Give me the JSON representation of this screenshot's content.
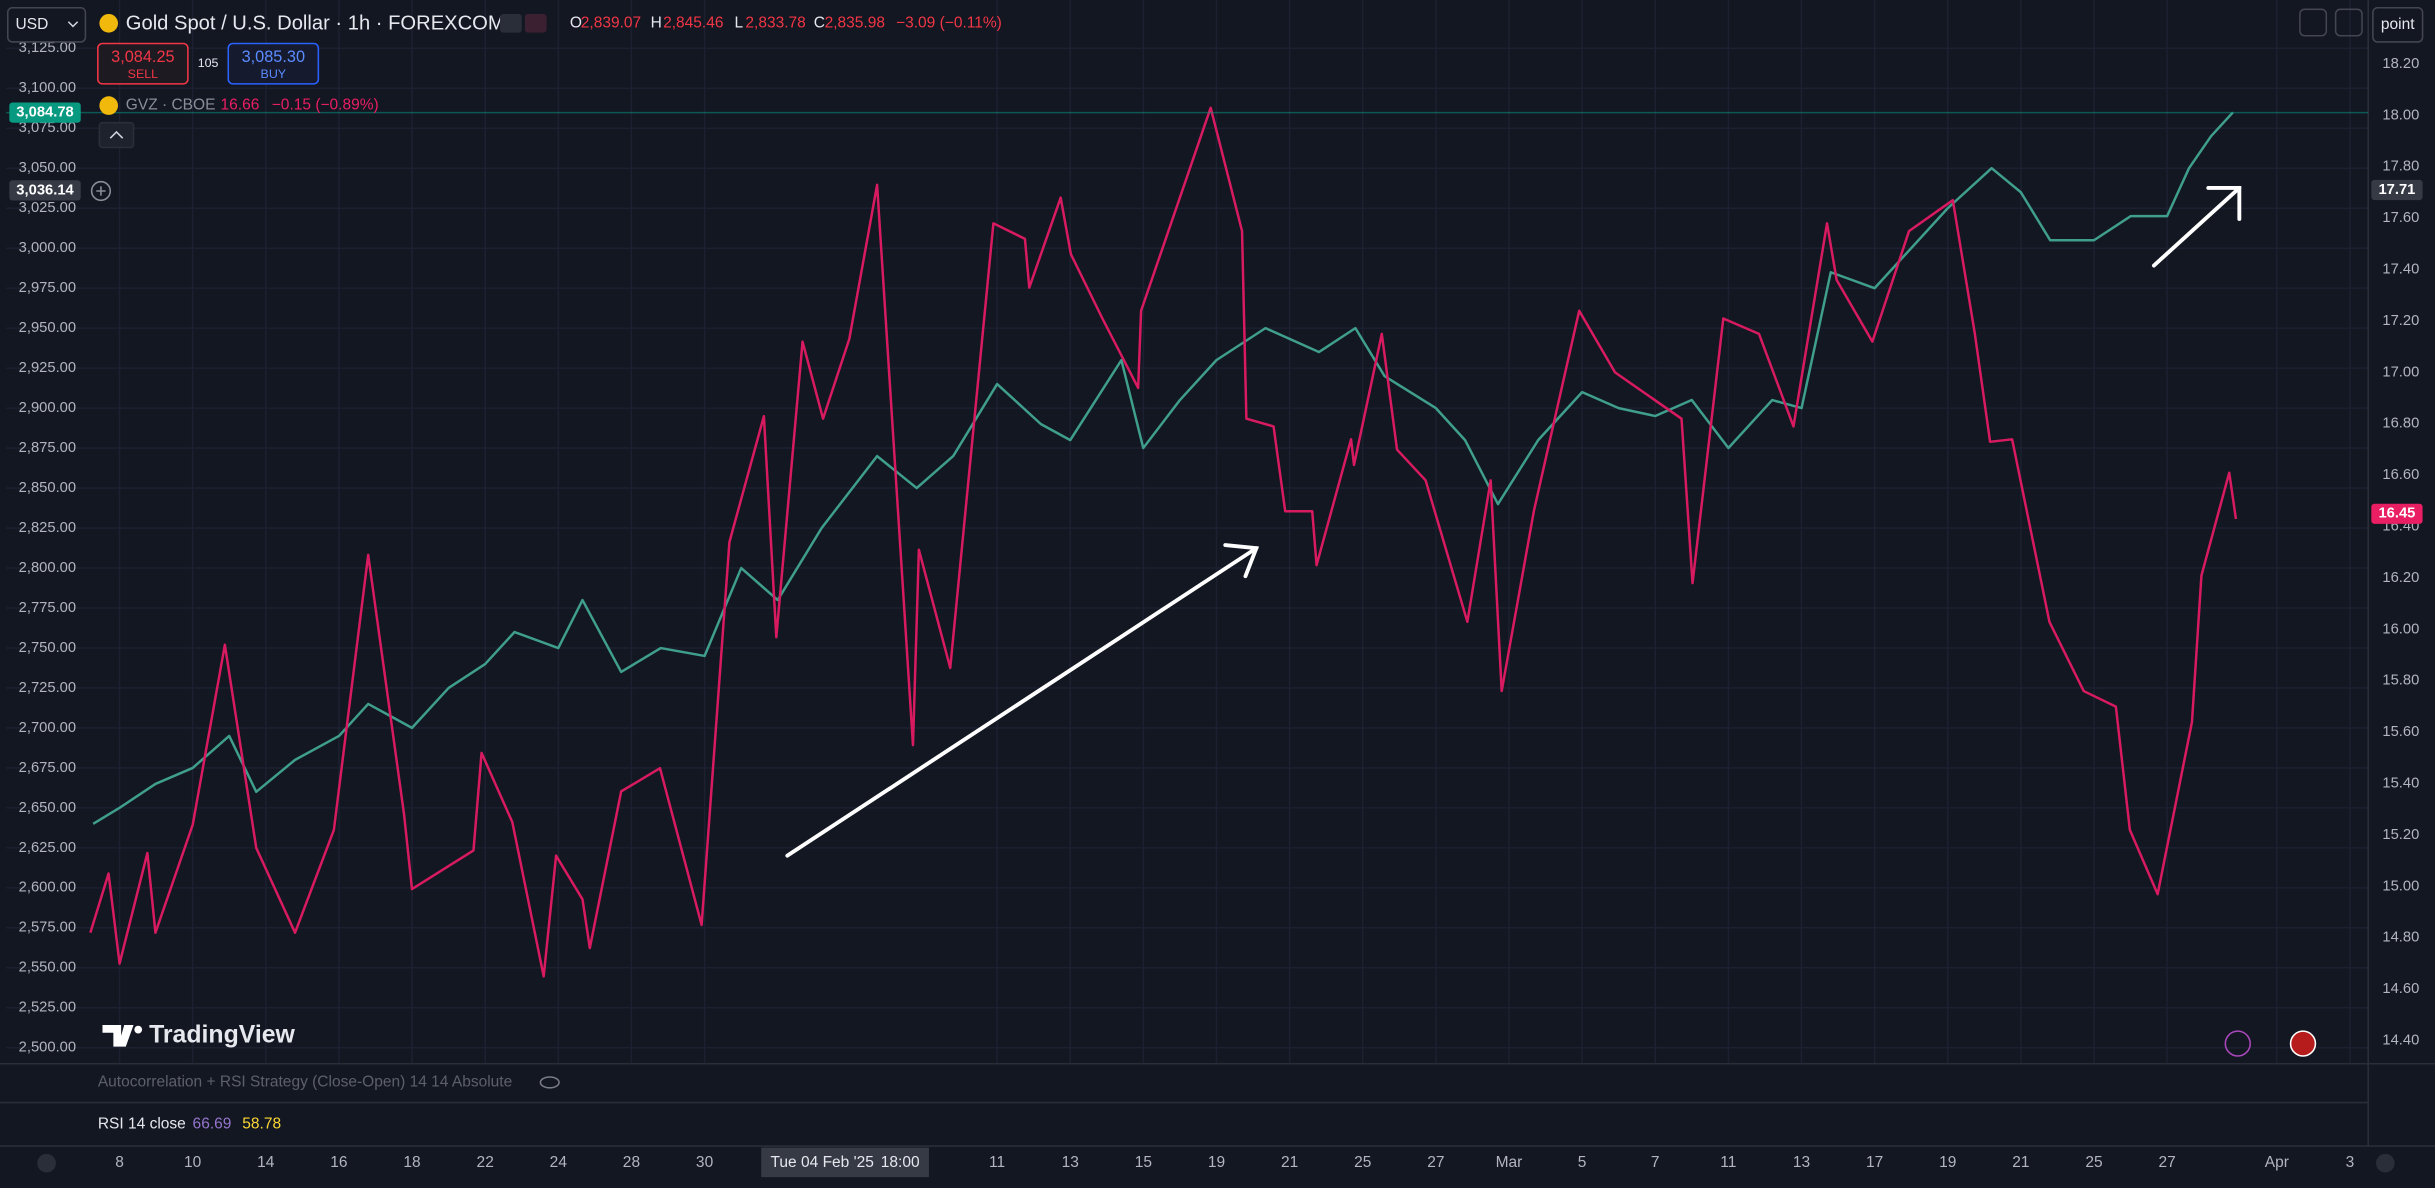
{
  "header": {
    "currency": "USD",
    "symbol": "Gold Spot / U.S. Dollar · 1h · FOREXCOM",
    "ohlc": [
      {
        "key": "O",
        "value": "2,839.07"
      },
      {
        "key": "H",
        "value": "2,845.46"
      },
      {
        "key": "L",
        "value": "2,833.78"
      },
      {
        "key": "C",
        "value": "2,835.98"
      }
    ],
    "change": "−3.09 (−0.11%)",
    "point_button": "point"
  },
  "trade": {
    "sell_price": "3,084.25",
    "sell_label": "SELL",
    "spread": "105",
    "buy_price": "3,085.30",
    "buy_label": "BUY"
  },
  "overlay": {
    "symbol": "GVZ · CBOE",
    "value": "16.66",
    "change": "−0.15 (−0.89%)"
  },
  "watermark": "TradingView",
  "indicators": {
    "strategy": "Autocorrelation + RSI Strategy (Close-Open) 14 14 Absolute",
    "rsi_label": "RSI 14 close",
    "rsi_value": "66.69",
    "rsi_ma": "58.78"
  },
  "chart_data": {
    "type": "line",
    "grid": true,
    "xlim": [
      -1.55,
      30.75
    ],
    "xticks": [
      {
        "value": 0,
        "label": "8"
      },
      {
        "value": 1,
        "label": "10"
      },
      {
        "value": 2,
        "label": "14"
      },
      {
        "value": 3,
        "label": "16"
      },
      {
        "value": 4,
        "label": "18"
      },
      {
        "value": 5,
        "label": "22"
      },
      {
        "value": 6,
        "label": "24"
      },
      {
        "value": 7,
        "label": "28"
      },
      {
        "value": 8,
        "label": "30"
      },
      {
        "value": 12,
        "label": "11"
      },
      {
        "value": 13,
        "label": "13"
      },
      {
        "value": 14,
        "label": "15"
      },
      {
        "value": 15,
        "label": "19"
      },
      {
        "value": 16,
        "label": "21"
      },
      {
        "value": 17,
        "label": "25"
      },
      {
        "value": 18,
        "label": "27"
      },
      {
        "value": 19,
        "label": "Mar"
      },
      {
        "value": 20,
        "label": "5"
      },
      {
        "value": 21,
        "label": "7"
      },
      {
        "value": 22,
        "label": "11"
      },
      {
        "value": 23,
        "label": "13"
      },
      {
        "value": 24,
        "label": "17"
      },
      {
        "value": 25,
        "label": "19"
      },
      {
        "value": 26,
        "label": "21"
      },
      {
        "value": 27,
        "label": "25"
      },
      {
        "value": 28,
        "label": "27"
      },
      {
        "value": 29.5,
        "label": "Apr"
      },
      {
        "value": 30.5,
        "label": "3"
      }
    ],
    "crosshair": {
      "value": 9.9,
      "date": "Tue 04 Feb '25",
      "time": "18:00"
    },
    "ylim": [
      2490,
      3128
    ],
    "yticks": [
      {
        "value": 2500,
        "label": "2,500.00"
      },
      {
        "value": 2525,
        "label": "2,525.00"
      },
      {
        "value": 2550,
        "label": "2,550.00"
      },
      {
        "value": 2575,
        "label": "2,575.00"
      },
      {
        "value": 2600,
        "label": "2,600.00"
      },
      {
        "value": 2625,
        "label": "2,625.00"
      },
      {
        "value": 2650,
        "label": "2,650.00"
      },
      {
        "value": 2675,
        "label": "2,675.00"
      },
      {
        "value": 2700,
        "label": "2,700.00"
      },
      {
        "value": 2725,
        "label": "2,725.00"
      },
      {
        "value": 2750,
        "label": "2,750.00"
      },
      {
        "value": 2775,
        "label": "2,775.00"
      },
      {
        "value": 2800,
        "label": "2,800.00"
      },
      {
        "value": 2825,
        "label": "2,825.00"
      },
      {
        "value": 2850,
        "label": "2,850.00"
      },
      {
        "value": 2875,
        "label": "2,875.00"
      },
      {
        "value": 2900,
        "label": "2,900.00"
      },
      {
        "value": 2925,
        "label": "2,925.00"
      },
      {
        "value": 2950,
        "label": "2,950.00"
      },
      {
        "value": 2975,
        "label": "2,975.00"
      },
      {
        "value": 3000,
        "label": "3,000.00"
      },
      {
        "value": 3025,
        "label": "3,025.00"
      },
      {
        "value": 3050,
        "label": "3,050.00"
      },
      {
        "value": 3075,
        "label": "3,075.00"
      },
      {
        "value": 3100,
        "label": "3,100.00"
      },
      {
        "value": 3125,
        "label": "3,125.00"
      }
    ],
    "y2lim": [
      14.31,
      18.28
    ],
    "y2ticks": [
      {
        "value": 14.4,
        "label": "14.40"
      },
      {
        "value": 14.6,
        "label": "14.60"
      },
      {
        "value": 14.8,
        "label": "14.80"
      },
      {
        "value": 15,
        "label": "15.00"
      },
      {
        "value": 15.2,
        "label": "15.20"
      },
      {
        "value": 15.4,
        "label": "15.40"
      },
      {
        "value": 15.6,
        "label": "15.60"
      },
      {
        "value": 15.8,
        "label": "15.80"
      },
      {
        "value": 16,
        "label": "16.00"
      },
      {
        "value": 16.2,
        "label": "16.20"
      },
      {
        "value": 16.4,
        "label": "16.40"
      },
      {
        "value": 16.6,
        "label": "16.60"
      },
      {
        "value": 16.8,
        "label": "16.80"
      },
      {
        "value": 17,
        "label": "17.00"
      },
      {
        "value": 17.2,
        "label": "17.20"
      },
      {
        "value": 17.4,
        "label": "17.40"
      },
      {
        "value": 17.6,
        "label": "17.60"
      },
      {
        "value": 17.8,
        "label": "17.80"
      },
      {
        "value": 18,
        "label": "18.00"
      },
      {
        "value": 18.2,
        "label": "18.20"
      }
    ],
    "price_labels": [
      {
        "value": 3084.78,
        "label": "3,084.78",
        "color": "#089981"
      },
      {
        "value": 3036.14,
        "label": "3,036.14",
        "color": "#363a45"
      },
      {
        "value": 17.71,
        "label": "17.71",
        "color": "#363a45",
        "axis": "y2"
      },
      {
        "value": 16.45,
        "label": "16.45",
        "color": "#e91e63",
        "axis": "y2"
      }
    ],
    "series": [
      {
        "color": "#3f9e8c",
        "x": [
          -0.36,
          0,
          0.49,
          1,
          1.5,
          1.87,
          2.4,
          3,
          3.4,
          4,
          4.5,
          5,
          5.4,
          6,
          6.33,
          6.86,
          7.4,
          8,
          8.5,
          9,
          9.6,
          10.36,
          10.9,
          11.4,
          12,
          12.6,
          13,
          13.7,
          14,
          14.5,
          15,
          15.67,
          16.4,
          16.9,
          17.3,
          18,
          18.4,
          18.85,
          19.4,
          20,
          20.5,
          21,
          21.5,
          22,
          22.6,
          23,
          23.4,
          24,
          24.5,
          25,
          25.6,
          26,
          26.4,
          27,
          27.5,
          28,
          28.3,
          28.6,
          28.9
        ],
        "values": [
          2640,
          2650,
          2665,
          2675,
          2695,
          2660,
          2680,
          2695,
          2715,
          2700,
          2725,
          2740,
          2760,
          2750,
          2780,
          2735,
          2750,
          2745,
          2800,
          2780,
          2825,
          2870,
          2850,
          2870,
          2915,
          2890,
          2880,
          2930,
          2875,
          2905,
          2930,
          2950,
          2935,
          2950,
          2920,
          2900,
          2880,
          2840,
          2880,
          2910,
          2900,
          2895,
          2905,
          2875,
          2905,
          2900,
          2985,
          2975,
          3000,
          3025,
          3050,
          3035,
          3005,
          3005,
          3020,
          3020,
          3050,
          3070,
          3085
        ]
      },
      {
        "color": "#d81b60",
        "axis": "y2",
        "x": [
          -0.4,
          -0.15,
          0,
          0.38,
          0.49,
          1,
          1.44,
          1.87,
          2.4,
          2.93,
          3.4,
          3.89,
          4,
          4.84,
          4.95,
          5.37,
          5.8,
          5.97,
          6.33,
          6.43,
          6.86,
          7.39,
          7.96,
          8.34,
          8.81,
          8.98,
          9.34,
          9.62,
          9.98,
          10.36,
          10.47,
          10.85,
          10.93,
          11.36,
          11.95,
          12.38,
          12.44,
          12.87,
          13.01,
          13.44,
          13.93,
          13.97,
          14.92,
          15.35,
          15.41,
          15.78,
          15.94,
          16.31,
          16.37,
          16.84,
          16.88,
          17.26,
          17.47,
          17.86,
          18.43,
          18.75,
          18.9,
          19.34,
          19.96,
          20.45,
          21.36,
          21.51,
          21.93,
          22.42,
          22.89,
          23.35,
          23.48,
          23.97,
          24.47,
          25.07,
          25.37,
          25.58,
          25.88,
          26.39,
          26.86,
          27.3,
          27.49,
          27.87,
          28.34,
          28.47,
          28.85,
          28.94
        ],
        "values": [
          14.82,
          15.05,
          14.7,
          15.13,
          14.82,
          15.24,
          15.94,
          15.15,
          14.82,
          15.22,
          16.29,
          15.28,
          14.99,
          15.14,
          15.52,
          15.25,
          14.65,
          15.12,
          14.95,
          14.76,
          15.37,
          15.46,
          14.85,
          16.34,
          16.83,
          15.97,
          17.12,
          16.82,
          17.13,
          17.73,
          17.24,
          15.55,
          16.31,
          15.85,
          17.58,
          17.52,
          17.33,
          17.68,
          17.46,
          17.21,
          16.94,
          17.24,
          18.03,
          17.55,
          16.82,
          16.79,
          16.46,
          16.46,
          16.25,
          16.74,
          16.64,
          17.15,
          16.7,
          16.58,
          16.03,
          16.58,
          15.76,
          16.46,
          17.24,
          17.0,
          16.82,
          16.18,
          17.21,
          17.15,
          16.79,
          17.58,
          17.36,
          17.12,
          17.55,
          17.67,
          17.15,
          16.73,
          16.74,
          16.03,
          15.76,
          15.7,
          15.22,
          14.97,
          15.64,
          16.21,
          16.61,
          16.43
        ]
      }
    ]
  }
}
